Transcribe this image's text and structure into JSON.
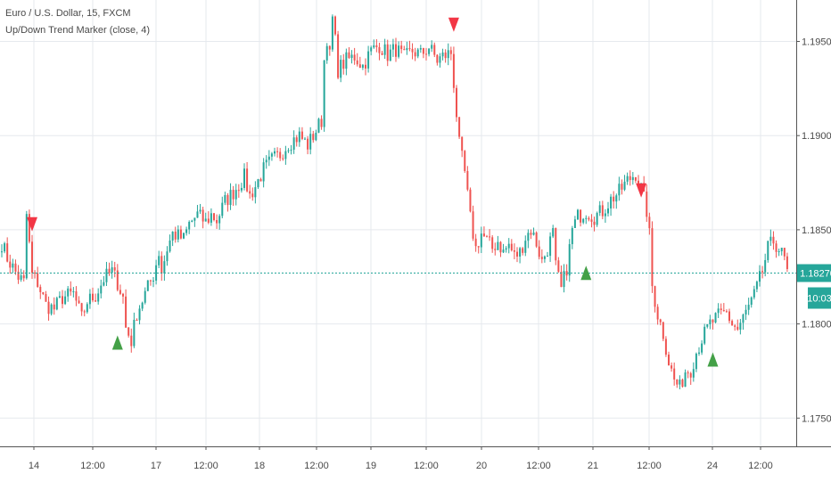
{
  "legend": {
    "symbol": "Euro / U.S. Dollar, 15, FXCM",
    "indicator": "Up/Down Trend Marker (close, 4)"
  },
  "colors": {
    "up": "#26a69a",
    "down": "#ef5350",
    "grid": "#e6e9ee",
    "axis": "#555555",
    "price_line": "#26a69a",
    "up_marker": "#43a047",
    "down_marker": "#f23645"
  },
  "chart_data": {
    "type": "candlestick",
    "title": "Euro / U.S. Dollar, 15, FXCM",
    "subtitle": "Up/Down Trend Marker (close, 4)",
    "x_tick_labels": [
      "14",
      "12:00",
      "17",
      "12:00",
      "18",
      "12:00",
      "19",
      "12:00",
      "20",
      "12:00",
      "21",
      "12:00",
      "24",
      "12:00"
    ],
    "y_tick_labels": [
      "1.19500",
      "1.19000",
      "1.18500",
      "1.18000",
      "1.17500"
    ],
    "ylim": [
      1.1735,
      1.1972
    ],
    "grid": true,
    "current_price": "1.18270",
    "countdown": "10:03",
    "path": [
      [
        0,
        1.1843
      ],
      [
        2,
        1.1835
      ],
      [
        4,
        1.183
      ],
      [
        6,
        1.1825
      ],
      [
        8,
        1.1822
      ],
      [
        9,
        1.1858
      ],
      [
        11,
        1.1826
      ],
      [
        13,
        1.1822
      ],
      [
        16,
        1.181
      ],
      [
        19,
        1.1808
      ],
      [
        22,
        1.1814
      ],
      [
        26,
        1.1816
      ],
      [
        29,
        1.1803
      ],
      [
        31,
        1.1812
      ],
      [
        34,
        1.1815
      ],
      [
        37,
        1.1824
      ],
      [
        40,
        1.1828
      ],
      [
        42,
        1.1822
      ],
      [
        44,
        1.1814
      ],
      [
        45,
        1.1798
      ],
      [
        47,
        1.1791
      ],
      [
        49,
        1.1806
      ],
      [
        52,
        1.1816
      ],
      [
        55,
        1.1826
      ],
      [
        57,
        1.1838
      ],
      [
        58,
        1.1828
      ],
      [
        60,
        1.184
      ],
      [
        62,
        1.1848
      ],
      [
        66,
        1.1845
      ],
      [
        68,
        1.1853
      ],
      [
        71,
        1.1858
      ],
      [
        74,
        1.1854
      ],
      [
        76,
        1.1858
      ],
      [
        78,
        1.1855
      ],
      [
        81,
        1.1865
      ],
      [
        84,
        1.187
      ],
      [
        88,
        1.1878
      ],
      [
        90,
        1.1868
      ],
      [
        92,
        1.1873
      ],
      [
        95,
        1.1882
      ],
      [
        98,
        1.1887
      ],
      [
        101,
        1.189
      ],
      [
        104,
        1.1896
      ],
      [
        108,
        1.19
      ],
      [
        111,
        1.1895
      ],
      [
        113,
        1.19
      ],
      [
        116,
        1.1908
      ],
      [
        117,
        1.194
      ],
      [
        118,
        1.1952
      ],
      [
        119,
        1.1942
      ],
      [
        120,
        1.1962
      ],
      [
        121,
        1.195
      ],
      [
        122,
        1.1935
      ],
      [
        125,
        1.194
      ],
      [
        128,
        1.1942
      ],
      [
        131,
        1.1937
      ],
      [
        134,
        1.1945
      ],
      [
        137,
        1.1948
      ],
      [
        140,
        1.1943
      ],
      [
        143,
        1.1946
      ],
      [
        146,
        1.1941
      ],
      [
        149,
        1.1945
      ],
      [
        152,
        1.1943
      ],
      [
        155,
        1.1947
      ],
      [
        158,
        1.194
      ],
      [
        160,
        1.1942
      ],
      [
        163,
        1.1944
      ],
      [
        164,
        1.1928
      ],
      [
        166,
        1.1895
      ],
      [
        168,
        1.188
      ],
      [
        170,
        1.1856
      ],
      [
        172,
        1.184
      ],
      [
        174,
        1.1848
      ],
      [
        176,
        1.1844
      ],
      [
        178,
        1.184
      ],
      [
        180,
        1.1844
      ],
      [
        182,
        1.1838
      ],
      [
        184,
        1.1842
      ],
      [
        186,
        1.1836
      ],
      [
        188,
        1.1838
      ],
      [
        190,
        1.1846
      ],
      [
        192,
        1.185
      ],
      [
        194,
        1.1843
      ],
      [
        196,
        1.1833
      ],
      [
        198,
        1.184
      ],
      [
        200,
        1.1848
      ],
      [
        201,
        1.183
      ],
      [
        203,
        1.1818
      ],
      [
        205,
        1.183
      ],
      [
        207,
        1.185
      ],
      [
        209,
        1.1857
      ],
      [
        212,
        1.186
      ],
      [
        215,
        1.1857
      ],
      [
        218,
        1.186
      ],
      [
        221,
        1.1866
      ],
      [
        224,
        1.187
      ],
      [
        227,
        1.1876
      ],
      [
        230,
        1.188
      ],
      [
        232,
        1.1872
      ],
      [
        234,
        1.186
      ],
      [
        235,
        1.1847
      ],
      [
        236,
        1.182
      ],
      [
        238,
        1.1805
      ],
      [
        240,
        1.1795
      ],
      [
        242,
        1.178
      ],
      [
        244,
        1.177
      ],
      [
        246,
        1.1766
      ],
      [
        248,
        1.1775
      ],
      [
        250,
        1.1776
      ],
      [
        252,
        1.1785
      ],
      [
        254,
        1.1792
      ],
      [
        257,
        1.18
      ],
      [
        260,
        1.1804
      ],
      [
        263,
        1.1806
      ],
      [
        265,
        1.18
      ],
      [
        267,
        1.1797
      ],
      [
        270,
        1.1806
      ],
      [
        273,
        1.1815
      ],
      [
        276,
        1.1828
      ],
      [
        278,
        1.184
      ],
      [
        280,
        1.1844
      ],
      [
        282,
        1.184
      ],
      [
        284,
        1.1834
      ],
      [
        285,
        1.1827
      ]
    ],
    "markers": [
      {
        "type": "down",
        "bar": 11,
        "price": 1.1851
      },
      {
        "type": "up",
        "bar": 42,
        "price": 1.1792
      },
      {
        "type": "down",
        "bar": 164,
        "price": 1.1957
      },
      {
        "type": "up",
        "bar": 212,
        "price": 1.1829
      },
      {
        "type": "down",
        "bar": 232,
        "price": 1.1869
      },
      {
        "type": "up",
        "bar": 258,
        "price": 1.1783
      }
    ]
  }
}
